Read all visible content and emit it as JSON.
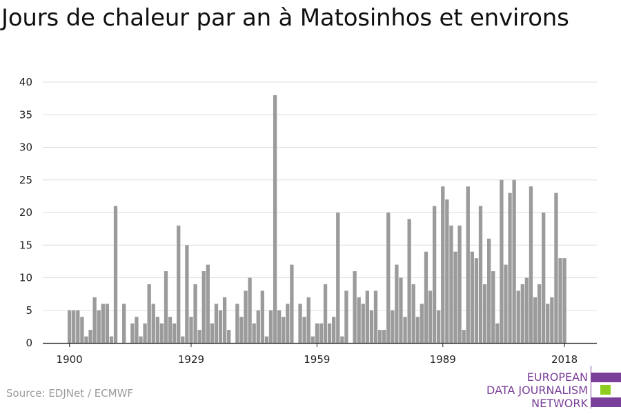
{
  "title": "Jours de chaleur par an à Matosinhos et environs",
  "source": "Source: EDJNet / ECMWF",
  "logo": {
    "lines": [
      "EUROPEAN",
      "DATA JOURNALISM",
      "NETWORK"
    ],
    "colors": {
      "purple": "#7a3f98",
      "green": "#8fce20"
    }
  },
  "colors": {
    "bar": "#9b9b9b",
    "grid": "#dddddd",
    "axis": "#222222"
  },
  "chart_data": {
    "type": "bar",
    "title": "Jours de chaleur par an à Matosinhos et environs",
    "xlabel": "",
    "ylabel": "",
    "ylim": [
      0,
      40
    ],
    "yticks": [
      0,
      5,
      10,
      15,
      20,
      25,
      30,
      35,
      40
    ],
    "xticks": [
      1900,
      1929,
      1959,
      1989,
      2018
    ],
    "grid": true,
    "x": [
      1900,
      1901,
      1902,
      1903,
      1904,
      1905,
      1906,
      1907,
      1908,
      1909,
      1910,
      1911,
      1912,
      1913,
      1914,
      1915,
      1916,
      1917,
      1918,
      1919,
      1920,
      1921,
      1922,
      1923,
      1924,
      1925,
      1926,
      1927,
      1928,
      1929,
      1930,
      1931,
      1932,
      1933,
      1934,
      1935,
      1936,
      1937,
      1938,
      1939,
      1940,
      1941,
      1942,
      1943,
      1944,
      1945,
      1946,
      1947,
      1948,
      1949,
      1950,
      1951,
      1952,
      1953,
      1954,
      1955,
      1956,
      1957,
      1958,
      1959,
      1960,
      1961,
      1962,
      1963,
      1964,
      1965,
      1966,
      1967,
      1968,
      1969,
      1970,
      1971,
      1972,
      1973,
      1974,
      1975,
      1976,
      1977,
      1978,
      1979,
      1980,
      1981,
      1982,
      1983,
      1984,
      1985,
      1986,
      1987,
      1988,
      1989,
      1990,
      1991,
      1992,
      1993,
      1994,
      1995,
      1996,
      1997,
      1998,
      1999,
      2000,
      2001,
      2002,
      2003,
      2004,
      2005,
      2006,
      2007,
      2008,
      2009,
      2010,
      2011,
      2012,
      2013,
      2014,
      2015,
      2016,
      2017,
      2018,
      2019
    ],
    "values": [
      5,
      5,
      5,
      4,
      1,
      2,
      7,
      5,
      6,
      6,
      1,
      21,
      0,
      6,
      0,
      3,
      4,
      1,
      3,
      9,
      6,
      4,
      3,
      11,
      4,
      3,
      18,
      1,
      15,
      4,
      9,
      2,
      11,
      12,
      3,
      6,
      5,
      7,
      2,
      0,
      6,
      4,
      8,
      10,
      3,
      5,
      8,
      1,
      5,
      38,
      5,
      4,
      6,
      12,
      0,
      6,
      4,
      7,
      1,
      3,
      3,
      9,
      3,
      4,
      20,
      1,
      8,
      0,
      11,
      7,
      6,
      8,
      5,
      8,
      2,
      2,
      20,
      5,
      12,
      10,
      4,
      19,
      9,
      4,
      6,
      14,
      8,
      21,
      5,
      24,
      22,
      18,
      14,
      18,
      2,
      24,
      14,
      13,
      21,
      9,
      16,
      11,
      3,
      25,
      12,
      23,
      25,
      8,
      9,
      10,
      24,
      7,
      9,
      20,
      6,
      7,
      23,
      13,
      13,
      0
    ]
  }
}
